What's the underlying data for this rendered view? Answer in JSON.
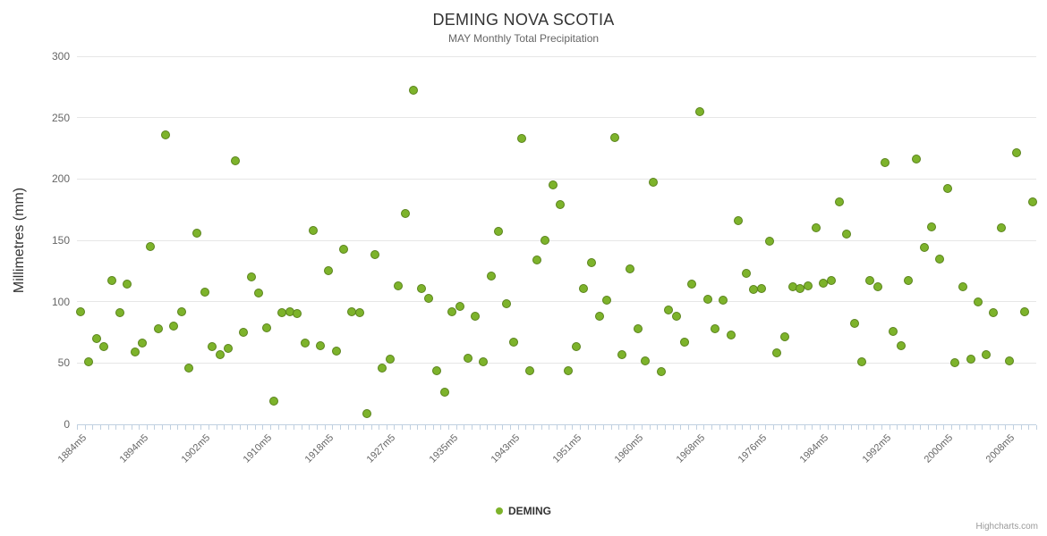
{
  "chart": {
    "title": "DEMING NOVA SCOTIA",
    "subtitle": "MAY Monthly Total Precipitation",
    "ylabel": "Millimetres (mm)",
    "legend": {
      "label": "DEMING"
    },
    "credits": "Highcharts.com",
    "colors": {
      "point_fill": "#7db32b",
      "point_border": "#5a831c",
      "grid": "#e6e6e6",
      "axis": "#c0d0e0",
      "label_text": "#666666",
      "title_text": "#333333"
    }
  },
  "chart_data": {
    "type": "scatter",
    "series_name": "DEMING",
    "title": "DEMING NOVA SCOTIA",
    "subtitle": "MAY Monthly Total Precipitation",
    "ylabel": "Millimetres (mm)",
    "ylim": [
      0,
      300
    ],
    "yticks": [
      0,
      50,
      100,
      150,
      200,
      250,
      300
    ],
    "x_label_step": 8,
    "x_label_max_index": 120,
    "grid": "horizontal",
    "legend_position": "bottom-center",
    "categories": [
      "1884m5",
      "1885m5",
      "1886m5",
      "1887m5",
      "1888m5",
      "1891m5",
      "1892m5",
      "1893m5",
      "1894m5",
      "1895m5",
      "1896m5",
      "1897m5",
      "1898m5",
      "1899m5",
      "1900m5",
      "1901m5",
      "1902m5",
      "1903m5",
      "1904m5",
      "1905m5",
      "1906m5",
      "1907m5",
      "1908m5",
      "1909m5",
      "1910m5",
      "1911m5",
      "1912m5",
      "1913m5",
      "1914m5",
      "1915m5",
      "1916m5",
      "1917m5",
      "1918m5",
      "1919m5",
      "1920m5",
      "1921m5",
      "1922m5",
      "1923m5",
      "1924m5",
      "1925m5",
      "1927m5",
      "1928m5",
      "1929m5",
      "1930m5",
      "1931m5",
      "1932m5",
      "1933m5",
      "1934m5",
      "1935m5",
      "1936m5",
      "1937m5",
      "1938m5",
      "1939m5",
      "1940m5",
      "1941m5",
      "1942m5",
      "1943m5",
      "1944m5",
      "1945m5",
      "1946m5",
      "1947m5",
      "1948m5",
      "1949m5",
      "1950m5",
      "1951m5",
      "1952m5",
      "1953m5",
      "1954m5",
      "1955m5",
      "1956m5",
      "1957m5",
      "1958m5",
      "1960m5",
      "1961m5",
      "1962m5",
      "1963m5",
      "1964m5",
      "1965m5",
      "1966m5",
      "1967m5",
      "1968m5",
      "1969m5",
      "1970m5",
      "1971m5",
      "1972m5",
      "1973m5",
      "1974m5",
      "1975m5",
      "1976m5",
      "1977m5",
      "1978m5",
      "1979m5",
      "1980m5",
      "1981m5",
      "1982m5",
      "1983m5",
      "1984m5",
      "1985m5",
      "1986m5",
      "1987m5",
      "1988m5",
      "1989m5",
      "1990m5",
      "1991m5",
      "1992m5",
      "1993m5",
      "1994m5",
      "1995m5",
      "1996m5",
      "1997m5",
      "1998m5",
      "1999m5",
      "2000m5",
      "2001m5",
      "2002m5",
      "2003m5",
      "2004m5",
      "2005m5",
      "2006m5",
      "2007m5",
      "2008m5",
      "2009m5",
      "2010m5",
      "2011m5"
    ],
    "values": [
      92,
      51,
      70,
      63,
      117,
      91,
      114,
      59,
      66,
      145,
      78,
      236,
      80,
      92,
      46,
      156,
      108,
      63,
      57,
      62,
      215,
      75,
      120,
      107,
      79,
      19,
      91,
      92,
      90,
      66,
      158,
      64,
      125,
      60,
      143,
      92,
      91,
      9,
      138,
      46,
      53,
      113,
      172,
      272,
      111,
      103,
      44,
      26,
      92,
      96,
      54,
      88,
      51,
      121,
      157,
      98,
      67,
      233,
      44,
      134,
      150,
      195,
      179,
      44,
      63,
      111,
      132,
      88,
      101,
      234,
      57,
      127,
      78,
      52,
      197,
      43,
      93,
      88,
      67,
      114,
      255,
      102,
      78,
      101,
      73,
      166,
      123,
      110,
      111,
      149,
      58,
      71,
      112,
      111,
      113,
      160,
      115,
      117,
      181,
      155,
      82,
      51,
      117,
      112,
      213,
      76,
      64,
      117,
      216,
      144,
      161,
      135,
      192,
      50,
      112,
      53,
      100,
      57,
      91,
      160,
      52,
      221,
      92,
      181
    ]
  }
}
